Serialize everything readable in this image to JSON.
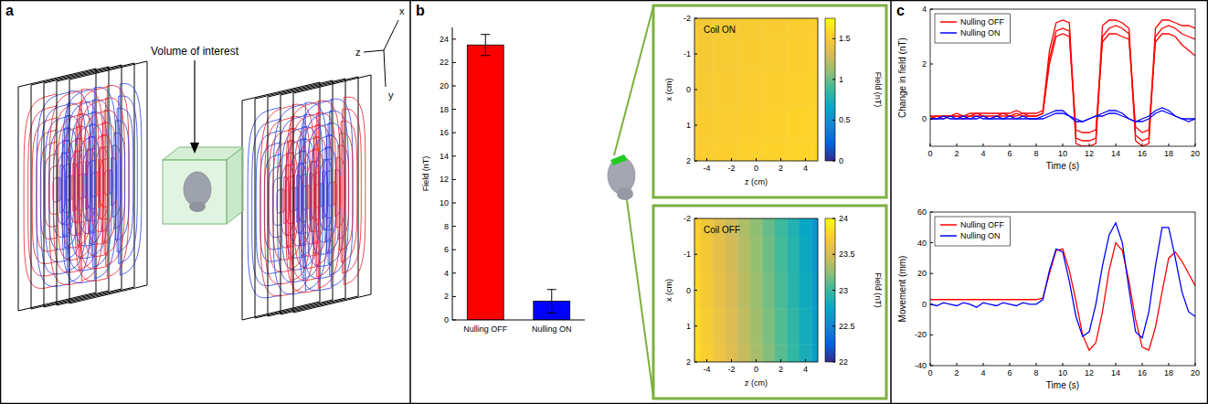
{
  "panels": [
    "a",
    "b",
    "c"
  ],
  "diagram": {
    "volume_label": "Volume of interest",
    "axis_labels": [
      "x",
      "y",
      "z"
    ]
  },
  "chart_data": [
    {
      "type": "bar",
      "ylabel": "Field (nT)",
      "categories": [
        "Nulling OFF",
        "Nulling ON"
      ],
      "values": [
        23.5,
        1.6
      ],
      "errors": [
        0.9,
        1.0
      ],
      "colors": [
        "#ff0000",
        "#0000ff"
      ],
      "ylim": [
        0,
        25
      ],
      "yticks": [
        0,
        2,
        4,
        6,
        8,
        10,
        12,
        14,
        16,
        18,
        20,
        22,
        24
      ]
    },
    {
      "type": "heatmap",
      "title": "Coil ON",
      "xlabel": "z (cm)",
      "ylabel": "x (cm)",
      "x": [
        -5,
        -4,
        -3,
        -2,
        -1,
        0,
        1,
        2,
        3,
        4,
        5
      ],
      "y": [
        -2,
        -1,
        0,
        1,
        2
      ],
      "xlim": [
        -5,
        5
      ],
      "ylim": [
        2,
        -2
      ],
      "xticks": [
        -4,
        -2,
        0,
        2,
        4
      ],
      "yticks": [
        -2,
        -1,
        0,
        1,
        2
      ],
      "cells": [
        [
          1.48,
          1.48,
          1.49,
          1.49,
          1.5,
          1.5,
          1.51,
          1.51,
          1.52,
          1.52,
          1.53
        ],
        [
          1.49,
          1.49,
          1.5,
          1.5,
          1.51,
          1.51,
          1.52,
          1.52,
          1.53,
          1.53,
          1.54
        ],
        [
          1.5,
          1.5,
          1.51,
          1.51,
          1.52,
          1.52,
          1.53,
          1.53,
          1.54,
          1.54,
          1.55
        ],
        [
          1.51,
          1.51,
          1.52,
          1.52,
          1.53,
          1.53,
          1.54,
          1.54,
          1.55,
          1.55,
          1.56
        ],
        [
          1.52,
          1.52,
          1.53,
          1.53,
          1.54,
          1.54,
          1.55,
          1.55,
          1.56,
          1.56,
          1.57
        ]
      ],
      "color_range": [
        0,
        1.75
      ],
      "color_ticks": [
        0,
        0.5,
        1,
        1.5
      ],
      "colorbar_label": "Field (nT)"
    },
    {
      "type": "heatmap",
      "title": "Coil OFF",
      "xlabel": "z (cm)",
      "ylabel": "x (cm)",
      "x": [
        -5,
        -4,
        -3,
        -2,
        -1,
        0,
        1,
        2,
        3,
        4,
        5
      ],
      "y": [
        -2,
        -1,
        0,
        1,
        2
      ],
      "xlim": [
        -5,
        5
      ],
      "ylim": [
        2,
        -2
      ],
      "xticks": [
        -4,
        -2,
        0,
        2,
        4
      ],
      "yticks": [
        -2,
        -1,
        0,
        1,
        2
      ],
      "cells": [
        [
          23.75,
          23.66,
          23.56,
          23.46,
          23.35,
          23.24,
          23.13,
          23.01,
          22.89,
          22.76,
          22.62
        ],
        [
          23.77,
          23.68,
          23.58,
          23.48,
          23.37,
          23.26,
          23.15,
          23.03,
          22.91,
          22.78,
          22.64
        ],
        [
          23.79,
          23.7,
          23.6,
          23.5,
          23.39,
          23.28,
          23.17,
          23.05,
          22.93,
          22.8,
          22.66
        ],
        [
          23.81,
          23.72,
          23.62,
          23.52,
          23.41,
          23.3,
          23.19,
          23.07,
          22.95,
          22.82,
          22.68
        ],
        [
          23.83,
          23.74,
          23.64,
          23.54,
          23.43,
          23.32,
          23.21,
          23.09,
          22.97,
          22.84,
          22.7
        ]
      ],
      "color_range": [
        22,
        24
      ],
      "color_ticks": [
        22,
        22.5,
        23,
        23.5,
        24
      ],
      "colorbar_label": "Field (nT)"
    },
    {
      "type": "line",
      "xlabel": "Time (s)",
      "ylabel": "Change in field (nT)",
      "legend": "upper left",
      "x": [
        0,
        0.5,
        1,
        1.5,
        2,
        2.5,
        3,
        3.5,
        4,
        4.5,
        5,
        5.5,
        6,
        6.5,
        7,
        7.5,
        8,
        8.5,
        9,
        9.5,
        10,
        10.5,
        11,
        11.5,
        12,
        12.5,
        13,
        13.5,
        14,
        14.5,
        15,
        15.5,
        16,
        16.5,
        17,
        17.5,
        18,
        18.5,
        19,
        19.5,
        20
      ],
      "xlim": [
        0,
        20
      ],
      "xticks": [
        0,
        2,
        4,
        6,
        8,
        10,
        12,
        14,
        16,
        18,
        20
      ],
      "ylim": [
        -1,
        4
      ],
      "yticks": [
        0,
        2,
        4
      ],
      "series": [
        {
          "name": "Nulling OFF",
          "color": "#ff0000",
          "values": [
            0.1,
            0.1,
            0.1,
            0.1,
            0.2,
            0.1,
            0.2,
            0.2,
            0.2,
            0.2,
            0.2,
            0.2,
            0.2,
            0.3,
            0.2,
            0.2,
            0.2,
            0.3,
            2.5,
            3.5,
            3.6,
            3.5,
            -0.7,
            -0.8,
            -0.8,
            -0.7,
            3.4,
            3.6,
            3.6,
            3.5,
            3.3,
            -0.6,
            -0.8,
            -0.7,
            3.3,
            3.6,
            3.6,
            3.5,
            3.4,
            3.4,
            3.3
          ]
        },
        {
          "name": "Nulling OFF",
          "color": "#ff0000",
          "values": [
            0.1,
            0.0,
            0.1,
            0.1,
            0.1,
            0.1,
            0.1,
            0.2,
            0.1,
            0.1,
            0.1,
            0.2,
            0.1,
            0.2,
            0.1,
            0.1,
            0.1,
            0.2,
            2.0,
            3.0,
            3.1,
            3.0,
            -0.4,
            -0.5,
            -0.5,
            -0.4,
            2.8,
            3.1,
            3.1,
            3.0,
            2.9,
            -0.3,
            -0.5,
            -0.4,
            2.8,
            3.1,
            3.1,
            3.0,
            2.7,
            2.5,
            2.3
          ]
        },
        {
          "name": "Nulling OFF",
          "color": "#ff0000",
          "values": [
            0.0,
            0.1,
            0.0,
            0.1,
            0.1,
            0.0,
            0.1,
            0.1,
            0.1,
            0.0,
            0.1,
            0.1,
            0.1,
            0.1,
            0.2,
            0.1,
            0.1,
            0.2,
            2.2,
            3.2,
            3.3,
            3.2,
            -0.9,
            -1.0,
            -1.0,
            -0.9,
            3.0,
            3.3,
            3.4,
            3.3,
            3.1,
            -0.8,
            -1.0,
            -0.9,
            3.0,
            3.3,
            3.4,
            3.3,
            3.1,
            3.0,
            2.9
          ]
        },
        {
          "name": "Nulling ON",
          "color": "#0000ff",
          "values": [
            0.0,
            0.0,
            0.1,
            0.0,
            0.0,
            0.1,
            0.0,
            0.0,
            0.1,
            0.0,
            0.0,
            0.0,
            0.1,
            0.0,
            0.0,
            0.0,
            0.0,
            0.1,
            0.2,
            0.3,
            0.3,
            0.1,
            0.0,
            -0.1,
            0.0,
            0.1,
            0.2,
            0.3,
            0.3,
            0.2,
            0.0,
            -0.1,
            0.0,
            0.1,
            0.3,
            0.4,
            0.3,
            0.1,
            0.0,
            0.0,
            0.0
          ]
        },
        {
          "name": "Nulling ON",
          "color": "#0000ff",
          "values": [
            0.0,
            0.0,
            0.0,
            0.1,
            0.0,
            0.0,
            0.0,
            0.1,
            0.0,
            0.0,
            0.1,
            0.0,
            0.0,
            0.0,
            0.1,
            0.0,
            0.0,
            0.0,
            0.1,
            0.2,
            0.2,
            0.1,
            -0.1,
            -0.1,
            0.0,
            0.1,
            0.1,
            0.2,
            0.2,
            0.1,
            0.0,
            -0.1,
            -0.1,
            0.0,
            0.2,
            0.3,
            0.2,
            0.1,
            0.0,
            -0.1,
            0.0
          ]
        }
      ]
    },
    {
      "type": "line",
      "xlabel": "Time (s)",
      "ylabel": "Movement (mm)",
      "legend": "upper left",
      "x": [
        0,
        0.5,
        1,
        1.5,
        2,
        2.5,
        3,
        3.5,
        4,
        4.5,
        5,
        5.5,
        6,
        6.5,
        7,
        7.5,
        8,
        8.5,
        9,
        9.5,
        10,
        10.5,
        11,
        11.5,
        12,
        12.5,
        13,
        13.5,
        14,
        14.5,
        15,
        15.5,
        16,
        16.5,
        17,
        17.5,
        18,
        18.5,
        19,
        19.5,
        20
      ],
      "xlim": [
        0,
        20
      ],
      "xticks": [
        0,
        2,
        4,
        6,
        8,
        10,
        12,
        14,
        16,
        18,
        20
      ],
      "ylim": [
        -40,
        60
      ],
      "yticks": [
        -40,
        -20,
        0,
        20,
        40,
        60
      ],
      "series": [
        {
          "name": "Nulling OFF",
          "color": "#ff0000",
          "values": [
            3,
            3,
            3,
            3,
            3,
            3,
            3,
            3,
            3,
            3,
            3,
            3,
            3,
            3,
            3,
            3,
            3,
            4,
            20,
            35,
            36,
            22,
            2,
            -20,
            -30,
            -25,
            -5,
            22,
            40,
            35,
            15,
            -10,
            -28,
            -30,
            -15,
            8,
            30,
            34,
            28,
            20,
            12
          ]
        },
        {
          "name": "Nulling ON",
          "color": "#0000ff",
          "values": [
            0,
            -1,
            1,
            0,
            -1,
            1,
            0,
            -2,
            1,
            0,
            -1,
            1,
            0,
            -1,
            1,
            0,
            0,
            3,
            22,
            36,
            34,
            15,
            -8,
            -21,
            -18,
            0,
            25,
            45,
            53,
            40,
            10,
            -18,
            -22,
            -5,
            25,
            50,
            50,
            30,
            8,
            -5,
            -8
          ]
        }
      ]
    }
  ]
}
